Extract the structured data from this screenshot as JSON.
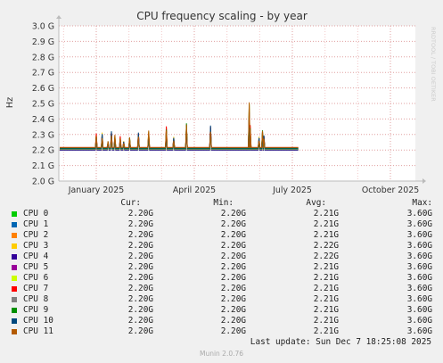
{
  "title": "CPU frequency scaling - by year",
  "watermark": "RRDTOOL / TOBI OETIKER",
  "colors": {
    "background": "#f0f0f0",
    "plot_background": "#ffffff",
    "grid_major": "#e0a0a0",
    "grid_minor": "#f2c8c8",
    "axis": "#bbbbbb"
  },
  "chart_data": {
    "type": "line",
    "ylabel": "Hz",
    "y_ticks": [
      "2.0 G",
      "2.1 G",
      "2.2 G",
      "2.3 G",
      "2.4 G",
      "2.5 G",
      "2.6 G",
      "2.7 G",
      "2.8 G",
      "2.9 G",
      "3.0 G"
    ],
    "ylim": [
      2.0,
      3.0
    ],
    "x_ticks": [
      "January 2025",
      "April 2025",
      "July 2025",
      "October 2025"
    ],
    "grid": true,
    "spikes": [
      {
        "t": 0.0,
        "v": 2.3
      },
      {
        "t": 0.06,
        "v": 2.31
      },
      {
        "t": 0.12,
        "v": 2.25
      },
      {
        "t": 0.155,
        "v": 2.32
      },
      {
        "t": 0.19,
        "v": 2.29
      },
      {
        "t": 0.245,
        "v": 2.28
      },
      {
        "t": 0.28,
        "v": 2.25
      },
      {
        "t": 0.34,
        "v": 2.28
      },
      {
        "t": 0.43,
        "v": 2.31
      },
      {
        "t": 0.535,
        "v": 2.32
      },
      {
        "t": 0.715,
        "v": 2.35
      },
      {
        "t": 0.79,
        "v": 2.28
      },
      {
        "t": 0.92,
        "v": 2.38
      },
      {
        "t": 1.165,
        "v": 2.36
      },
      {
        "t": 1.56,
        "v": 2.52
      },
      {
        "t": 1.57,
        "v": 2.36
      },
      {
        "t": 1.66,
        "v": 2.28
      },
      {
        "t": 1.695,
        "v": 2.33
      },
      {
        "t": 1.71,
        "v": 2.29
      }
    ],
    "data_end_t": 2.06,
    "series": [
      {
        "name": "CPU 0",
        "color": "#00cc00",
        "cur": "2.20G",
        "min": "2.20G",
        "avg": "2.21G",
        "max": "3.60G"
      },
      {
        "name": "CPU 1",
        "color": "#0066b3",
        "cur": "2.20G",
        "min": "2.20G",
        "avg": "2.21G",
        "max": "3.60G"
      },
      {
        "name": "CPU 2",
        "color": "#ff8000",
        "cur": "2.20G",
        "min": "2.20G",
        "avg": "2.21G",
        "max": "3.60G"
      },
      {
        "name": "CPU 3",
        "color": "#ffcc00",
        "cur": "2.20G",
        "min": "2.20G",
        "avg": "2.22G",
        "max": "3.60G"
      },
      {
        "name": "CPU 4",
        "color": "#330099",
        "cur": "2.20G",
        "min": "2.20G",
        "avg": "2.22G",
        "max": "3.60G"
      },
      {
        "name": "CPU 5",
        "color": "#990099",
        "cur": "2.20G",
        "min": "2.20G",
        "avg": "2.21G",
        "max": "3.60G"
      },
      {
        "name": "CPU 6",
        "color": "#ccff00",
        "cur": "2.20G",
        "min": "2.20G",
        "avg": "2.21G",
        "max": "3.60G"
      },
      {
        "name": "CPU 7",
        "color": "#ff0000",
        "cur": "2.20G",
        "min": "2.20G",
        "avg": "2.21G",
        "max": "3.60G"
      },
      {
        "name": "CPU 8",
        "color": "#808080",
        "cur": "2.20G",
        "min": "2.20G",
        "avg": "2.21G",
        "max": "3.60G"
      },
      {
        "name": "CPU 9",
        "color": "#008f00",
        "cur": "2.20G",
        "min": "2.20G",
        "avg": "2.21G",
        "max": "3.60G"
      },
      {
        "name": "CPU 10",
        "color": "#00487d",
        "cur": "2.20G",
        "min": "2.20G",
        "avg": "2.21G",
        "max": "3.60G"
      },
      {
        "name": "CPU 11",
        "color": "#b35a00",
        "cur": "2.20G",
        "min": "2.20G",
        "avg": "2.21G",
        "max": "3.60G"
      }
    ]
  },
  "legend_headers": {
    "cur": "Cur:",
    "min": "Min:",
    "avg": "Avg:",
    "max": "Max:"
  },
  "last_update": "Last update: Sun Dec  7 18:25:08 2025",
  "version": "Munin 2.0.76"
}
